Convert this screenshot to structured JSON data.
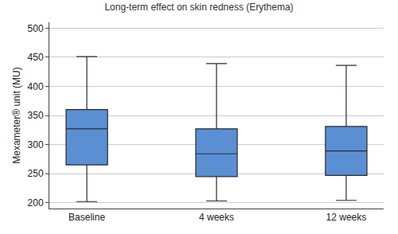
{
  "chart_data": {
    "type": "box",
    "title": "Long-term effect on skin redness (Erythema)",
    "y_label": "Mexameter® unit (MU)",
    "categories": [
      "Baseline",
      "4 weeks",
      "12 weeks"
    ],
    "lower_whisker": [
      202,
      203,
      204
    ],
    "q1": [
      265,
      245,
      247
    ],
    "median": [
      327,
      284,
      289
    ],
    "q3": [
      360,
      327,
      331
    ],
    "upper_whisker": [
      451,
      439,
      436
    ],
    "color": "#5b8fd4",
    "ylim": [
      190,
      510
    ],
    "yticks": [
      200,
      250,
      300,
      350,
      400,
      450,
      500
    ],
    "grid": true
  }
}
